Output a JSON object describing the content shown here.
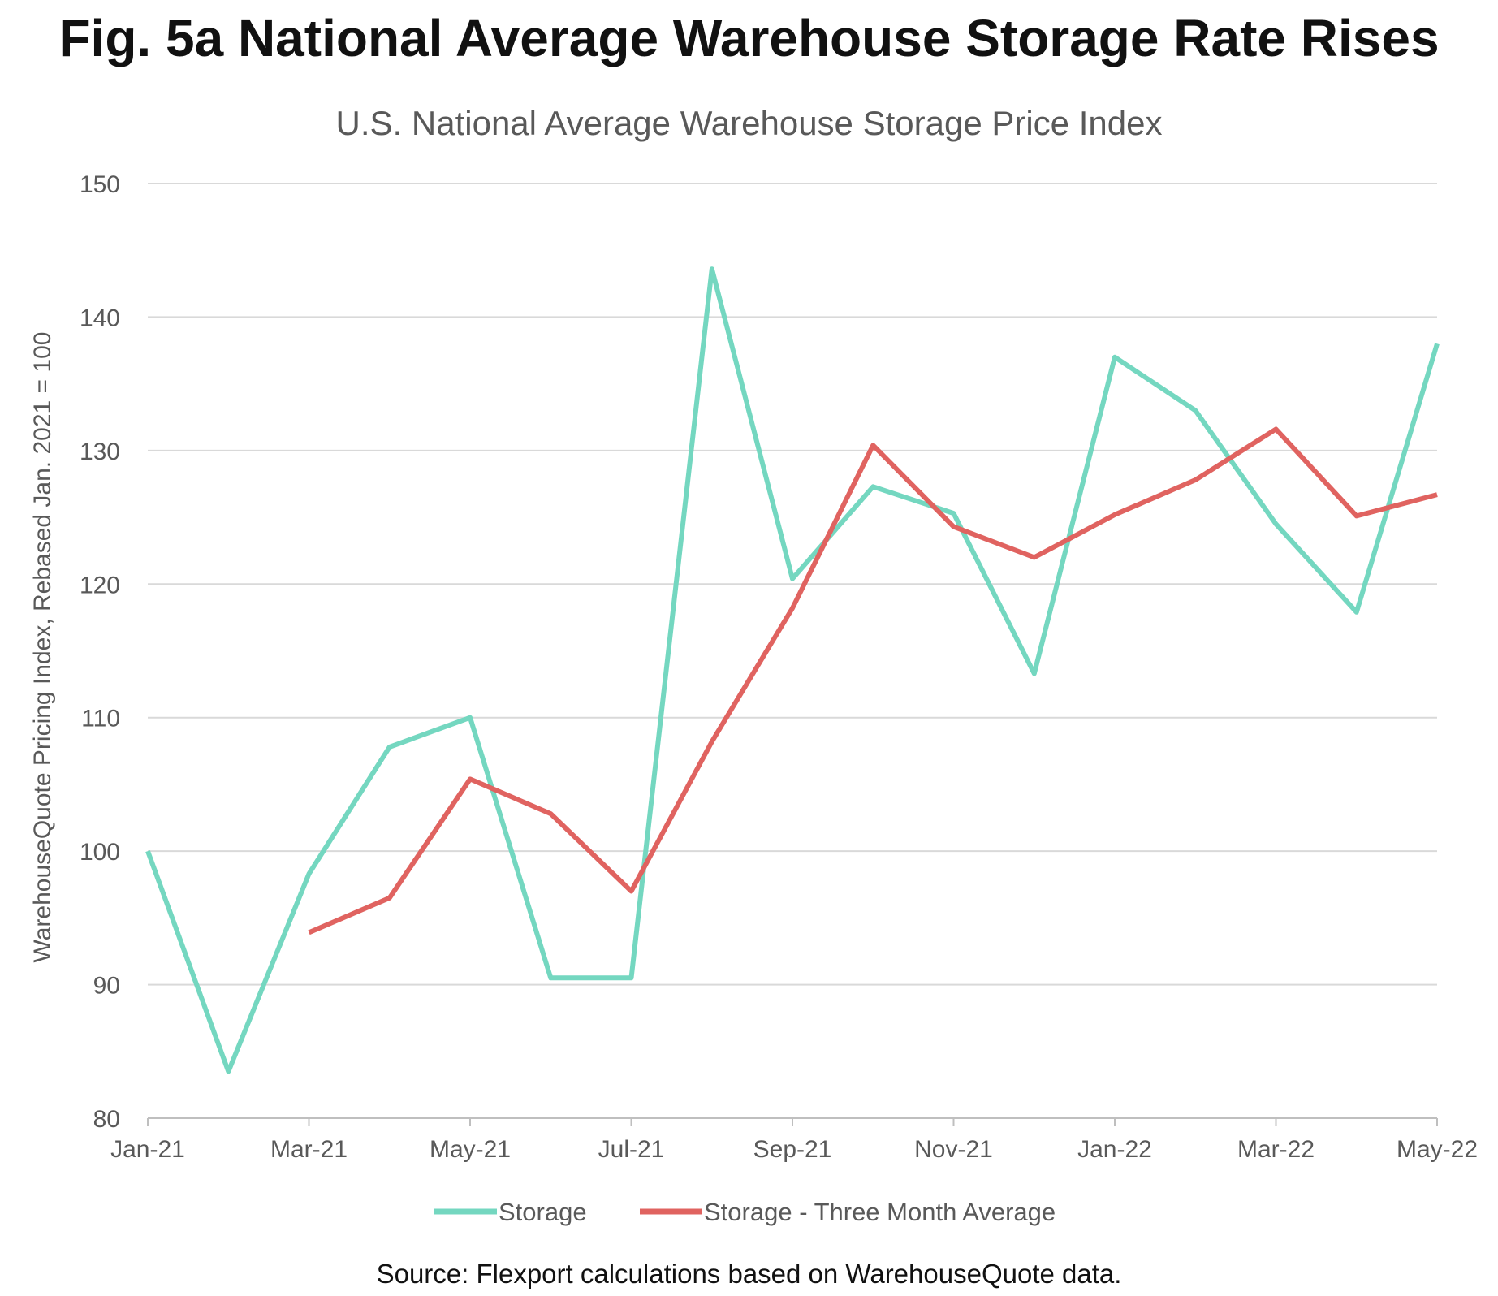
{
  "title": "Fig. 5a National Average Warehouse Storage Rate Rises",
  "source": "Source: Flexport calculations based on WarehouseQuote data.",
  "colors": {
    "storage": "#74D7C0",
    "average": "#E06360",
    "grid": "#D9D9D9",
    "axis": "#BFBFBF",
    "text": "#595959"
  },
  "chart_data": {
    "type": "line",
    "title": "U.S. National Average Warehouse Storage Price Index",
    "xlabel": "",
    "ylabel": "WarehouseQuote Pricing Index, Rebased Jan. 2021 = 100",
    "ylim": [
      80,
      150
    ],
    "yticks": [
      80,
      90,
      100,
      110,
      120,
      130,
      140,
      150
    ],
    "categories": [
      "Jan-21",
      "Feb-21",
      "Mar-21",
      "Apr-21",
      "May-21",
      "Jun-21",
      "Jul-21",
      "Aug-21",
      "Sep-21",
      "Oct-21",
      "Nov-21",
      "Dec-21",
      "Jan-22",
      "Feb-22",
      "Mar-22",
      "Apr-22",
      "May-22"
    ],
    "xtick_labels": [
      "Jan-21",
      "Mar-21",
      "May-21",
      "Jul-21",
      "Sep-21",
      "Nov-21",
      "Jan-22",
      "Mar-22",
      "May-22"
    ],
    "grid": true,
    "legend_position": "bottom",
    "series": [
      {
        "name": "Storage",
        "values": [
          100,
          83.5,
          98.3,
          107.8,
          110,
          90.5,
          90.5,
          143.6,
          120.4,
          127.3,
          125.3,
          113.3,
          137,
          133,
          124.5,
          117.9,
          138
        ]
      },
      {
        "name": "Storage - Three Month Average",
        "values": [
          null,
          null,
          93.9,
          96.5,
          105.4,
          102.8,
          97,
          108.2,
          118.2,
          130.4,
          124.3,
          122,
          125.2,
          127.8,
          131.6,
          125.1,
          126.7
        ]
      }
    ]
  }
}
